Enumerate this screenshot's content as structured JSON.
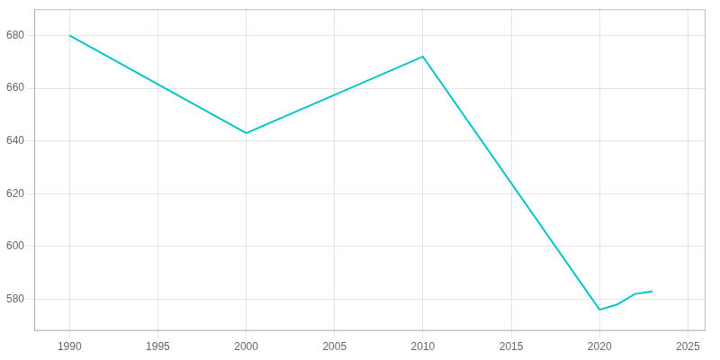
{
  "chart_data": {
    "type": "line",
    "x": [
      1990,
      2000,
      2010,
      2020,
      2021,
      2022,
      2023
    ],
    "values": [
      680,
      643,
      672,
      576,
      578,
      582,
      583
    ],
    "color": "#00C5C8",
    "xlim": [
      1988,
      2026
    ],
    "ylim": [
      568,
      690
    ],
    "xticks": [
      1990,
      1995,
      2000,
      2005,
      2010,
      2015,
      2020,
      2025
    ],
    "yticks": [
      580,
      600,
      620,
      640,
      660,
      680
    ],
    "grid": true
  }
}
